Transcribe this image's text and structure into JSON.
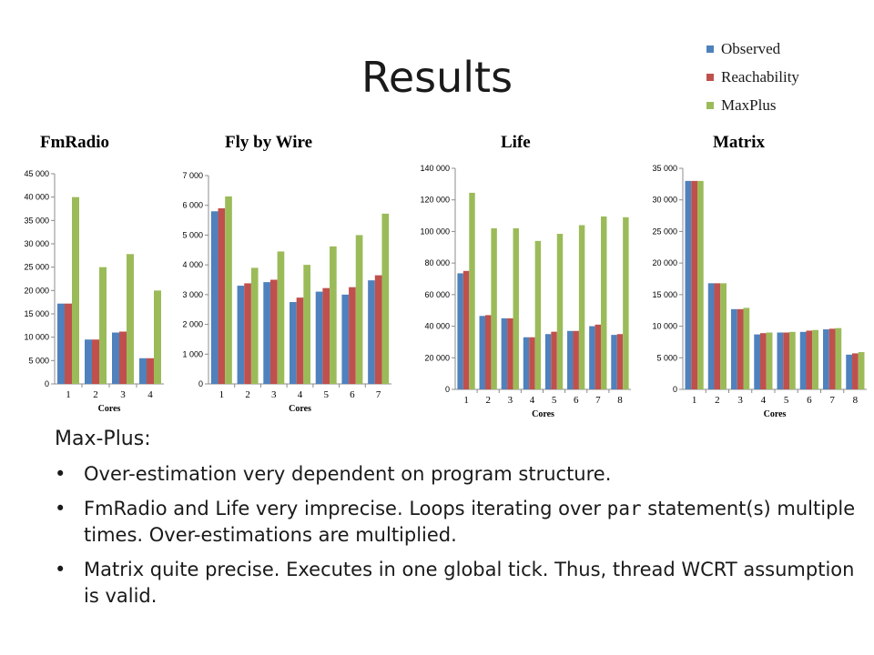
{
  "title": "Results",
  "legend": [
    {
      "label": "Observed",
      "color": "#4f81bd"
    },
    {
      "label": "Reachability",
      "color": "#c0504d"
    },
    {
      "label": "MaxPlus",
      "color": "#9bbb59"
    }
  ],
  "chart_data": [
    {
      "type": "bar",
      "title": "FmRadio",
      "xlabel": "Cores",
      "ylabel": "",
      "categories": [
        "1",
        "2",
        "3",
        "4"
      ],
      "ylim": [
        0,
        45000
      ],
      "ytick_labels": [
        "0",
        "5 000",
        "10 000",
        "15 000",
        "20 000",
        "25 000",
        "30 000",
        "35 000",
        "40 000",
        "45 000"
      ],
      "series": [
        {
          "name": "Observed",
          "values": [
            17200,
            9500,
            11000,
            5500
          ]
        },
        {
          "name": "Reachability",
          "values": [
            17200,
            9500,
            11200,
            5500
          ]
        },
        {
          "name": "MaxPlus",
          "values": [
            40000,
            25000,
            27800,
            20000
          ]
        }
      ],
      "grid": false,
      "legend_position": "top-right"
    },
    {
      "type": "bar",
      "title": "Fly by Wire",
      "xlabel": "Cores",
      "ylabel": "",
      "categories": [
        "1",
        "2",
        "3",
        "4",
        "5",
        "6",
        "7"
      ],
      "ylim": [
        0,
        7000
      ],
      "ytick_labels": [
        "0",
        "1 000",
        "2 000",
        "3 000",
        "4 000",
        "5 000",
        "6 000",
        "7 000"
      ],
      "series": [
        {
          "name": "Observed",
          "values": [
            5800,
            3300,
            3420,
            2750,
            3100,
            3000,
            3480
          ]
        },
        {
          "name": "Reachability",
          "values": [
            5900,
            3380,
            3500,
            2900,
            3220,
            3250,
            3650
          ]
        },
        {
          "name": "MaxPlus",
          "values": [
            6300,
            3900,
            4450,
            4000,
            4620,
            5000,
            5720
          ]
        }
      ],
      "grid": false,
      "legend_position": "top-right"
    },
    {
      "type": "bar",
      "title": "Life",
      "xlabel": "Cores",
      "ylabel": "",
      "categories": [
        "1",
        "2",
        "3",
        "4",
        "5",
        "6",
        "7",
        "8"
      ],
      "ylim": [
        0,
        140000
      ],
      "ytick_labels": [
        "0",
        "20 000",
        "40 000",
        "60 000",
        "80 000",
        "100 000",
        "120 000",
        "140 000"
      ],
      "series": [
        {
          "name": "Observed",
          "values": [
            73500,
            46500,
            45000,
            33000,
            35000,
            37000,
            40000,
            34500
          ]
        },
        {
          "name": "Reachability",
          "values": [
            75000,
            47000,
            45000,
            33000,
            36500,
            37000,
            41000,
            35000
          ]
        },
        {
          "name": "MaxPlus",
          "values": [
            124500,
            102000,
            102000,
            94000,
            98500,
            104000,
            109500,
            109000
          ]
        }
      ],
      "grid": false,
      "legend_position": "top-right"
    },
    {
      "type": "bar",
      "title": "Matrix",
      "xlabel": "Cores",
      "ylabel": "",
      "categories": [
        "1",
        "2",
        "3",
        "4",
        "5",
        "6",
        "7",
        "8"
      ],
      "ylim": [
        0,
        35000
      ],
      "ytick_labels": [
        "0",
        "5 000",
        "10 000",
        "15 000",
        "20 000",
        "25 000",
        "30 000",
        "35 000"
      ],
      "series": [
        {
          "name": "Observed",
          "values": [
            33000,
            16800,
            12700,
            8700,
            9000,
            9100,
            9500,
            5500
          ]
        },
        {
          "name": "Reachability",
          "values": [
            33000,
            16800,
            12700,
            8900,
            9000,
            9300,
            9600,
            5700
          ]
        },
        {
          "name": "MaxPlus",
          "values": [
            33000,
            16800,
            12900,
            9000,
            9100,
            9400,
            9700,
            5900
          ]
        }
      ],
      "grid": false,
      "legend_position": "top-right"
    }
  ],
  "notes": {
    "heading": "Max-Plus:",
    "bullet1": "Over-estimation very dependent on program structure.",
    "bullet2_before": "FmRadio and Life very imprecise. Loops iterating over ",
    "bullet2_keyword": "par",
    "bullet2_after": " statement(s) multiple times. Over-estimations are multiplied.",
    "bullet3": "Matrix quite precise. Executes in one global tick. Thus, thread WCRT assumption is valid."
  }
}
